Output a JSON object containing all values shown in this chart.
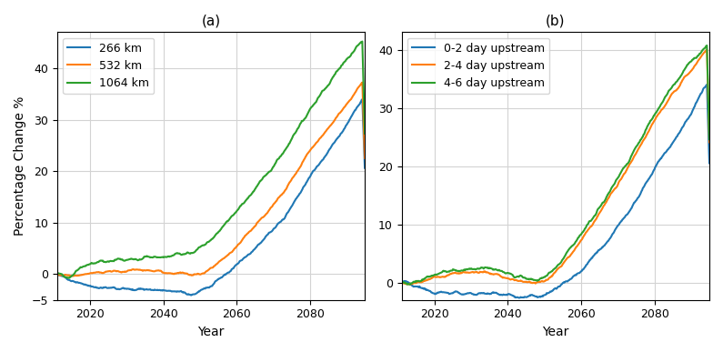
{
  "title_a": "(a)",
  "title_b": "(b)",
  "xlabel": "Year",
  "ylabel": "Percentage Change %",
  "legend_a": [
    "266 km",
    "532 km",
    "1064 km"
  ],
  "legend_b": [
    "0-2 day upstream",
    "2-4 day upstream",
    "4-6 day upstream"
  ],
  "colors_a": [
    "#1f77b4",
    "#ff7f0e",
    "#2ca02c"
  ],
  "colors_b": [
    "#1f77b4",
    "#ff7f0e",
    "#2ca02c"
  ],
  "year_start": 2011,
  "year_end": 2095,
  "ylim_a": [
    -5,
    47
  ],
  "ylim_b": [
    -3,
    43
  ],
  "yticks_a": [
    -5,
    0,
    10,
    20,
    30,
    40
  ],
  "yticks_b": [
    0,
    10,
    20,
    30,
    40
  ],
  "xticks": [
    2020,
    2040,
    2060,
    2080
  ],
  "figsize": [
    7.95,
    3.87
  ],
  "dpi": 100
}
